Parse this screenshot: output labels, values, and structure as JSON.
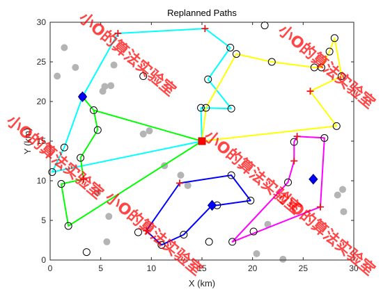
{
  "chart_data": {
    "type": "line",
    "title": "Replanned Paths",
    "xlabel": "X (km)",
    "ylabel": "Y (km)",
    "xlim": [
      0,
      30
    ],
    "ylim": [
      0,
      30
    ],
    "xticks": [
      0,
      5,
      10,
      15,
      20,
      25,
      30
    ],
    "yticks": [
      0,
      5,
      10,
      15,
      20,
      25,
      30
    ],
    "grid": false,
    "series": [
      {
        "color": "#00FFFF",
        "points": [
          [
            15,
            15
          ],
          [
            0.2,
            11.1
          ],
          [
            1.4,
            14.2
          ],
          [
            3.2,
            20.6
          ],
          [
            6.7,
            28.6
          ],
          [
            15.3,
            29.2
          ],
          [
            17.8,
            26.8
          ],
          [
            15.6,
            22.8
          ],
          [
            17.9,
            19.1
          ],
          [
            14.9,
            19.2
          ],
          [
            15,
            15
          ]
        ]
      },
      {
        "color": "#FFFF00",
        "points": [
          [
            15,
            15
          ],
          [
            15.4,
            19.2
          ],
          [
            18.4,
            26.0
          ],
          [
            21.9,
            25.0
          ],
          [
            26.1,
            24.3
          ],
          [
            26.8,
            24.3
          ],
          [
            27.6,
            26.3
          ],
          [
            28.1,
            28.0
          ],
          [
            28.8,
            23.2
          ],
          [
            25.7,
            21.3
          ],
          [
            28.3,
            16.9
          ],
          [
            15,
            15
          ]
        ]
      },
      {
        "color": "#00FF00",
        "points": [
          [
            3.2,
            20.6
          ],
          [
            4.3,
            18.9
          ],
          [
            4.7,
            16.4
          ],
          [
            3.0,
            12.9
          ],
          [
            3.3,
            10.2
          ],
          [
            1.1,
            9.6
          ],
          [
            1.8,
            4.3
          ],
          [
            15,
            15
          ],
          [
            4.3,
            18.9
          ]
        ]
      },
      {
        "color": "#0000FF",
        "points": [
          [
            16.5,
            6.9
          ],
          [
            19.8,
            7.5
          ],
          [
            17.9,
            10.7
          ],
          [
            12.8,
            9.7
          ],
          [
            9.5,
            3.7
          ],
          [
            11.0,
            1.9
          ],
          [
            13.2,
            3.2
          ],
          [
            16.0,
            6.9
          ],
          [
            16.5,
            6.9
          ]
        ]
      },
      {
        "color": "#FF00FF",
        "points": [
          [
            24.4,
            15.6
          ],
          [
            27.1,
            15.4
          ],
          [
            26.7,
            6.7
          ],
          [
            18.0,
            2.3
          ],
          [
            23.5,
            9.8
          ],
          [
            24.1,
            12.5
          ],
          [
            24.1,
            14.9
          ],
          [
            24.4,
            15.6
          ]
        ]
      }
    ],
    "gray_dots": {
      "color": "#B4B4B4",
      "points": [
        [
          1.4,
          26.8
        ],
        [
          0.7,
          23.2
        ],
        [
          2.5,
          24.3
        ],
        [
          5.4,
          21.9
        ],
        [
          6.0,
          22.0
        ],
        [
          5.2,
          21.3
        ],
        [
          6.3,
          24.6
        ],
        [
          9.8,
          16.3
        ],
        [
          9.2,
          15.9
        ],
        [
          11.3,
          11.9
        ],
        [
          4.7,
          8.5
        ],
        [
          5.8,
          5.5
        ],
        [
          12.9,
          10.7
        ],
        [
          13.6,
          9.4
        ],
        [
          5.6,
          2.3
        ],
        [
          20.4,
          0.8
        ],
        [
          21.5,
          4.5
        ],
        [
          23.0,
          0.1
        ],
        [
          28.4,
          8.2
        ],
        [
          29.0,
          6.1
        ],
        [
          28.9,
          8.9
        ]
      ]
    },
    "open_circles": {
      "color": "#000000",
      "points": [
        [
          21.2,
          29.6
        ],
        [
          9.2,
          23.2
        ],
        [
          8.7,
          3.5
        ],
        [
          3.6,
          1.0
        ],
        [
          15.7,
          2.3
        ],
        [
          20.1,
          3.6
        ],
        [
          0.2,
          11.1
        ],
        [
          1.4,
          14.2
        ],
        [
          3.2,
          20.6
        ],
        [
          17.8,
          26.8
        ],
        [
          15.6,
          22.8
        ],
        [
          17.9,
          19.1
        ],
        [
          14.9,
          19.2
        ],
        [
          15.4,
          19.2
        ],
        [
          18.4,
          26.0
        ],
        [
          21.9,
          25.0
        ],
        [
          26.1,
          24.3
        ],
        [
          26.8,
          24.3
        ],
        [
          27.6,
          26.3
        ],
        [
          28.1,
          28.0
        ],
        [
          28.8,
          23.2
        ],
        [
          28.3,
          16.9
        ],
        [
          4.3,
          18.9
        ],
        [
          4.7,
          16.4
        ],
        [
          3.0,
          12.9
        ],
        [
          1.1,
          9.6
        ],
        [
          1.8,
          4.3
        ],
        [
          16.5,
          6.9
        ],
        [
          19.8,
          7.5
        ],
        [
          17.9,
          10.7
        ],
        [
          11.0,
          1.9
        ],
        [
          13.2,
          3.2
        ],
        [
          27.1,
          15.4
        ],
        [
          18.0,
          2.3
        ],
        [
          23.5,
          9.8
        ],
        [
          24.1,
          14.9
        ]
      ]
    },
    "plus_markers": {
      "color": "#E8141E",
      "points": [
        [
          6.7,
          28.6
        ],
        [
          15.3,
          29.2
        ],
        [
          25.7,
          21.3
        ],
        [
          3.3,
          10.2
        ],
        [
          12.8,
          9.7
        ],
        [
          9.5,
          3.7
        ],
        [
          24.1,
          12.5
        ],
        [
          26.7,
          6.7
        ],
        [
          24.4,
          15.6
        ]
      ]
    },
    "diamond_markers": {
      "color": "#0000FF",
      "points": [
        [
          3.2,
          20.6
        ],
        [
          16.0,
          6.9
        ],
        [
          26.0,
          10.2
        ]
      ]
    },
    "square_markers": {
      "color": "#FF0000",
      "points": [
        [
          15,
          15
        ]
      ]
    }
  },
  "watermark": {
    "text": "小O的算法实验室",
    "color": "#FF0000"
  }
}
